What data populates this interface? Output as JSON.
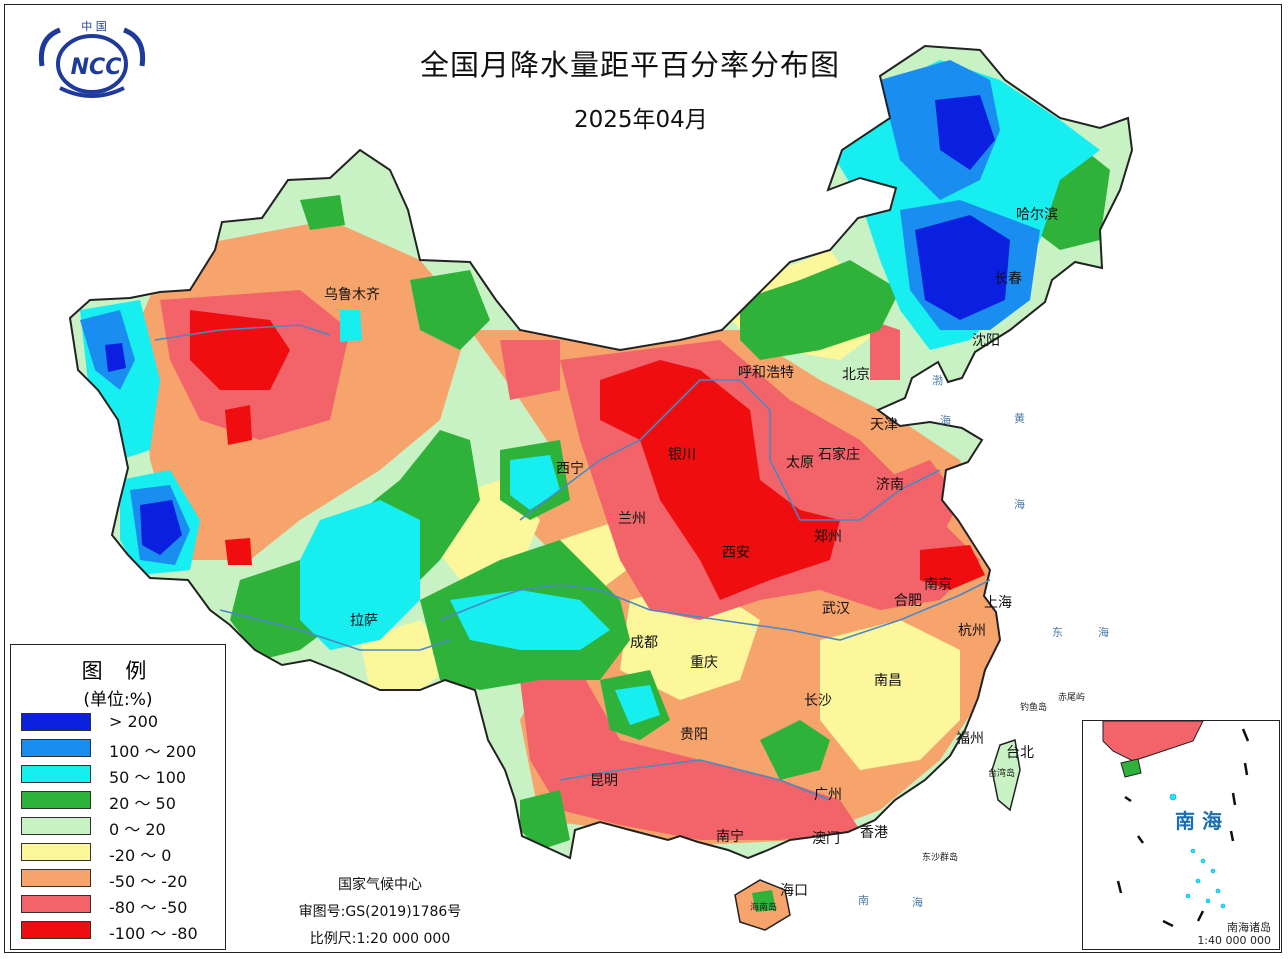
{
  "header": {
    "title": "全国月降水量距平百分率分布图",
    "subtitle": "2025年04月",
    "logo_text": "NCC",
    "logo_caption": "中 国"
  },
  "legend": {
    "title": "图 例",
    "unit": "(单位:%)",
    "items": [
      {
        "label": "> 200",
        "color": "#0a1fe0"
      },
      {
        "label": "100 ～ 200",
        "color": "#1a8ef0"
      },
      {
        "label": "50 ～ 100",
        "color": "#16eef0"
      },
      {
        "label": "20 ～ 50",
        "color": "#2fb23a"
      },
      {
        "label": "0 ～ 20",
        "color": "#c8f2c4"
      },
      {
        "label": "-20 ～ 0",
        "color": "#fcf79a"
      },
      {
        "label": "-50 ～ -20",
        "color": "#f7a36c"
      },
      {
        "label": "-80 ～ -50",
        "color": "#f3636a"
      },
      {
        "label": "-100 ～ -80",
        "color": "#ef0d10"
      }
    ]
  },
  "credits": {
    "org": "国家气候中心",
    "approval": "审图号:GS(2019)1786号",
    "scale": "比例尺:1:20 000 000"
  },
  "cities": [
    {
      "name": "乌鲁木齐"
    },
    {
      "name": "呼和浩特"
    },
    {
      "name": "北京"
    },
    {
      "name": "天津"
    },
    {
      "name": "石家庄"
    },
    {
      "name": "太原"
    },
    {
      "name": "银川"
    },
    {
      "name": "西宁"
    },
    {
      "name": "兰州"
    },
    {
      "name": "济南"
    },
    {
      "name": "郑州"
    },
    {
      "name": "西安"
    },
    {
      "name": "哈尔滨"
    },
    {
      "name": "长春"
    },
    {
      "name": "沈阳"
    },
    {
      "name": "南京"
    },
    {
      "name": "上海"
    },
    {
      "name": "合肥"
    },
    {
      "name": "杭州"
    },
    {
      "name": "武汉"
    },
    {
      "name": "拉萨"
    },
    {
      "name": "成都"
    },
    {
      "name": "重庆"
    },
    {
      "name": "长沙"
    },
    {
      "name": "南昌"
    },
    {
      "name": "贵阳"
    },
    {
      "name": "福州"
    },
    {
      "name": "台北"
    },
    {
      "name": "昆明"
    },
    {
      "name": "广州"
    },
    {
      "name": "南宁"
    },
    {
      "name": "澳门"
    },
    {
      "name": "香港"
    },
    {
      "name": "海口"
    }
  ],
  "sea_labels": {
    "bohai": "渤",
    "bohai2": "海",
    "huanghai": "黄",
    "huanghai2": "海",
    "donghai": "东",
    "donghai2": "海",
    "nanhai": "南",
    "nanhai2": "海",
    "diaoyu": "钓鱼岛",
    "chiwei": "赤尾屿",
    "taiwan_island": "台湾岛",
    "dongsha": "东沙群岛",
    "hainan_island": "海南岛"
  },
  "inset": {
    "title": "南 海",
    "islands": "南海诸岛",
    "scale": "1:40 000 000"
  }
}
